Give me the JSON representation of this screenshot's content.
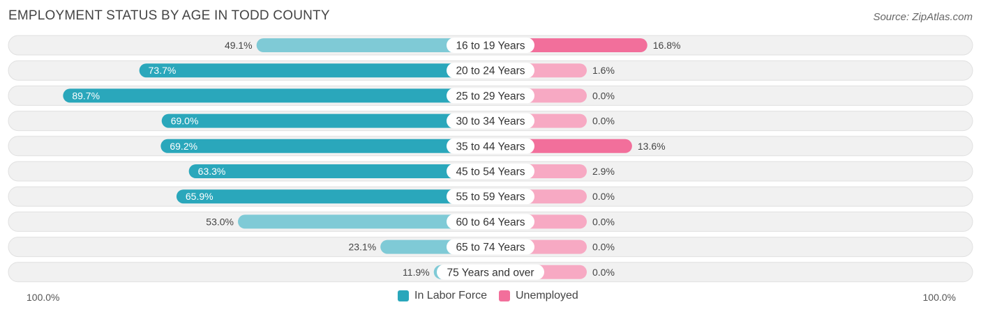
{
  "title": "EMPLOYMENT STATUS BY AGE IN TODD COUNTY",
  "source": "Source: ZipAtlas.com",
  "colors": {
    "labor": "#2aa7bb",
    "labor_light": "#7fcad6",
    "unemployed": "#f26f9b",
    "unemployed_light": "#f7a9c3",
    "track": "#f1f1f1",
    "track_border": "#e0e0e0"
  },
  "chart_data": {
    "type": "bar",
    "orientation": "horizontal-diverging",
    "title": "EMPLOYMENT STATUS BY AGE IN TODD COUNTY",
    "categories": [
      "16 to 19 Years",
      "20 to 24 Years",
      "25 to 29 Years",
      "30 to 34 Years",
      "35 to 44 Years",
      "45 to 54 Years",
      "55 to 59 Years",
      "60 to 64 Years",
      "65 to 74 Years",
      "75 Years and over"
    ],
    "series": [
      {
        "name": "In Labor Force",
        "values": [
          49.1,
          73.7,
          89.7,
          69.0,
          69.2,
          63.3,
          65.9,
          53.0,
          23.1,
          11.9
        ],
        "labels": [
          "49.1%",
          "73.7%",
          "89.7%",
          "69.0%",
          "69.2%",
          "63.3%",
          "65.9%",
          "53.0%",
          "23.1%",
          "11.9%"
        ]
      },
      {
        "name": "Unemployed",
        "values": [
          16.8,
          1.6,
          0.0,
          0.0,
          13.6,
          2.9,
          0.0,
          0.0,
          0.0,
          0.0
        ],
        "labels": [
          "16.8%",
          "1.6%",
          "0.0%",
          "0.0%",
          "13.6%",
          "2.9%",
          "0.0%",
          "0.0%",
          "0.0%",
          "0.0%"
        ]
      }
    ],
    "xlim": [
      -100,
      100
    ],
    "axis_left_label": "100.0%",
    "axis_right_label": "100.0%",
    "legend": [
      "In Labor Force",
      "Unemployed"
    ],
    "legend_position": "bottom-center"
  }
}
